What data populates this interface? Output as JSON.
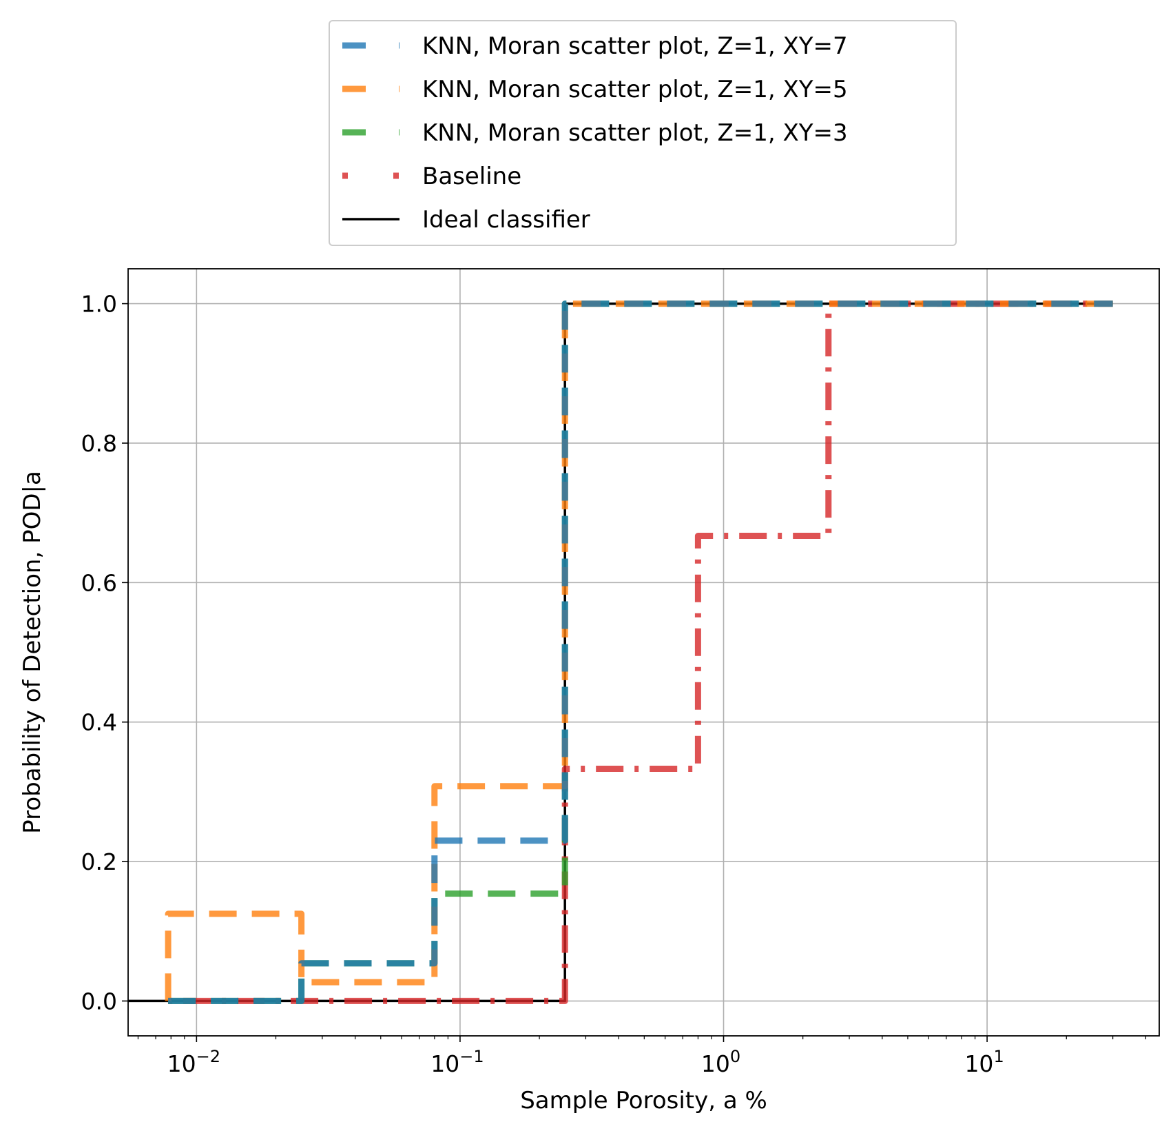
{
  "chart_data": {
    "type": "line",
    "title": "",
    "xlabel": "Sample Porosity, a %",
    "ylabel": "Probability of Detection, POD|a",
    "xscale": "log",
    "xlim": [
      0.0055,
      45
    ],
    "ylim": [
      -0.05,
      1.05
    ],
    "grid": true,
    "legend_placement": "above plot, centered",
    "x_ticks": [
      {
        "value": 0.01,
        "base": "10",
        "exp": "−2"
      },
      {
        "value": 0.1,
        "base": "10",
        "exp": "−1"
      },
      {
        "value": 1,
        "base": "10",
        "exp": "0"
      },
      {
        "value": 10,
        "base": "10",
        "exp": "1"
      }
    ],
    "y_ticks": [
      {
        "value": 0.0,
        "label": "0.0"
      },
      {
        "value": 0.2,
        "label": "0.2"
      },
      {
        "value": 0.4,
        "label": "0.4"
      },
      {
        "value": 0.6,
        "label": "0.6"
      },
      {
        "value": 0.8,
        "label": "0.8"
      },
      {
        "value": 1.0,
        "label": "1.0"
      }
    ],
    "series": [
      {
        "name": "KNN, Moran scatter plot, Z=1, XY=7",
        "color": "#1f77b4",
        "style": "dashed",
        "x": [
          0.0078,
          0.025,
          0.025,
          0.08,
          0.08,
          0.25,
          0.25,
          30
        ],
        "y": [
          0.0,
          0.0,
          0.054,
          0.054,
          0.23,
          0.23,
          1.0,
          1.0
        ]
      },
      {
        "name": "KNN, Moran scatter plot, Z=1, XY=5",
        "color": "#ff7f0e",
        "style": "dashed",
        "x": [
          0.0078,
          0.0078,
          0.025,
          0.025,
          0.08,
          0.08,
          0.25,
          0.25,
          30
        ],
        "y": [
          0.0,
          0.125,
          0.125,
          0.027,
          0.027,
          0.308,
          0.308,
          1.0,
          1.0
        ]
      },
      {
        "name": "KNN, Moran scatter plot, Z=1, XY=3",
        "color": "#2ca02c",
        "style": "dashed",
        "x": [
          0.0078,
          0.025,
          0.025,
          0.08,
          0.08,
          0.25,
          0.25,
          30
        ],
        "y": [
          0.0,
          0.0,
          0.054,
          0.054,
          0.154,
          0.154,
          1.0,
          1.0
        ]
      },
      {
        "name": "Baseline",
        "color": "#d62728",
        "style": "dashdotted",
        "x": [
          0.0078,
          0.25,
          0.25,
          0.8,
          0.8,
          2.5,
          2.5,
          30
        ],
        "y": [
          0.0,
          0.0,
          0.333,
          0.333,
          0.667,
          0.667,
          1.0,
          1.0
        ]
      },
      {
        "name": "Ideal classifier",
        "color": "#000000",
        "style": "solid",
        "x": [
          0.0055,
          0.25,
          0.25,
          30
        ],
        "y": [
          0.0,
          0.0,
          1.0,
          1.0
        ]
      }
    ]
  }
}
